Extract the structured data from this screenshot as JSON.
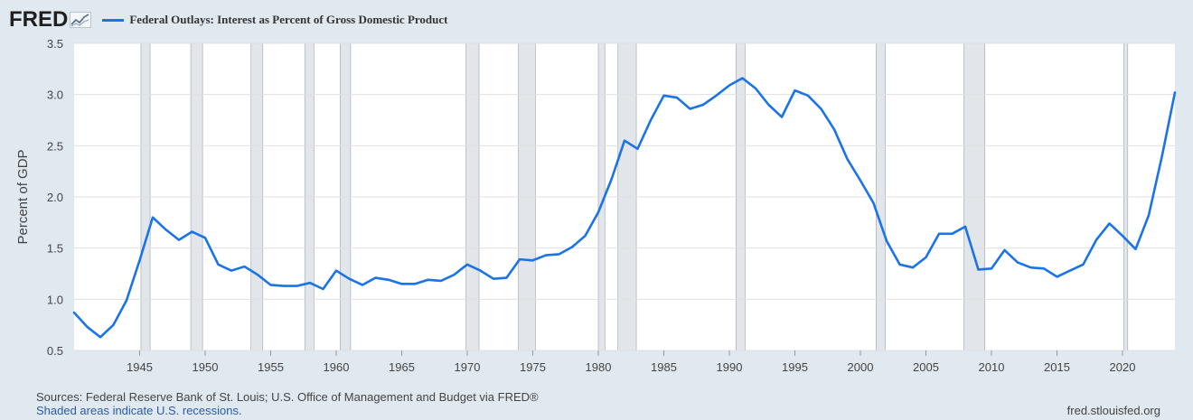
{
  "header": {
    "logo_text": "FRED",
    "legend_label": "Federal Outlays: Interest as Percent of Gross Domestic Product"
  },
  "footer": {
    "sources": "Sources: Federal Reserve Bank of St. Louis; U.S. Office of Management and Budget via FRED®",
    "note": "Shaded areas indicate U.S. recessions.",
    "site": "fred.stlouisfed.org"
  },
  "colors": {
    "line": "#1a73e8",
    "recession": "#e2e5ea",
    "plot_bg": "#ffffff",
    "grid": "#e0e0e0"
  },
  "chart_data": {
    "type": "line",
    "ylabel": "Percent of GDP",
    "xlim": [
      1940,
      2024
    ],
    "ylim": [
      0.5,
      3.5
    ],
    "yticks": [
      "0.5",
      "1.0",
      "1.5",
      "2.0",
      "2.5",
      "3.0",
      "3.5"
    ],
    "xticks": [
      "1945",
      "1950",
      "1955",
      "1960",
      "1965",
      "1970",
      "1975",
      "1980",
      "1985",
      "1990",
      "1995",
      "2000",
      "2005",
      "2010",
      "2015",
      "2020"
    ],
    "grid": true,
    "recessions": [
      [
        1945.1,
        1945.8
      ],
      [
        1948.9,
        1949.8
      ],
      [
        1953.5,
        1954.4
      ],
      [
        1957.6,
        1958.3
      ],
      [
        1960.3,
        1961.1
      ],
      [
        1969.9,
        1970.9
      ],
      [
        1973.9,
        1975.2
      ],
      [
        1980.0,
        1980.5
      ],
      [
        1981.5,
        1982.9
      ],
      [
        1990.5,
        1991.2
      ],
      [
        2001.2,
        2001.9
      ],
      [
        2007.9,
        2009.5
      ],
      [
        2020.1,
        2020.4
      ]
    ],
    "series": [
      {
        "x": [
          1940,
          1941,
          1942,
          1943,
          1944,
          1945,
          1946,
          1947,
          1948,
          1949,
          1950,
          1951,
          1952,
          1953,
          1954,
          1955,
          1956,
          1957,
          1958,
          1959,
          1960,
          1961,
          1962,
          1963,
          1964,
          1965,
          1966,
          1967,
          1968,
          1969,
          1970,
          1971,
          1972,
          1973,
          1974,
          1975,
          1976,
          1977,
          1978,
          1979,
          1980,
          1981,
          1982,
          1983,
          1984,
          1985,
          1986,
          1987,
          1988,
          1989,
          1990,
          1991,
          1992,
          1993,
          1994,
          1995,
          1996,
          1997,
          1998,
          1999,
          2000,
          2001,
          2002,
          2003,
          2004,
          2005,
          2006,
          2007,
          2008,
          2009,
          2010,
          2011,
          2012,
          2013,
          2014,
          2015,
          2016,
          2017,
          2018,
          2019,
          2020,
          2021,
          2022,
          2023,
          2024
        ],
        "values": [
          0.87,
          0.73,
          0.63,
          0.75,
          0.99,
          1.38,
          1.8,
          1.68,
          1.58,
          1.66,
          1.6,
          1.34,
          1.28,
          1.32,
          1.24,
          1.14,
          1.13,
          1.13,
          1.16,
          1.1,
          1.28,
          1.2,
          1.14,
          1.21,
          1.19,
          1.15,
          1.15,
          1.19,
          1.18,
          1.24,
          1.34,
          1.28,
          1.2,
          1.21,
          1.39,
          1.38,
          1.43,
          1.44,
          1.51,
          1.62,
          1.85,
          2.17,
          2.55,
          2.47,
          2.75,
          2.99,
          2.97,
          2.86,
          2.9,
          2.99,
          3.09,
          3.16,
          3.06,
          2.9,
          2.78,
          3.04,
          2.99,
          2.86,
          2.66,
          2.37,
          2.16,
          1.94,
          1.57,
          1.34,
          1.31,
          1.41,
          1.64,
          1.64,
          1.71,
          1.29,
          1.3,
          1.48,
          1.36,
          1.31,
          1.3,
          1.22,
          1.28,
          1.34,
          1.58,
          1.74,
          1.62,
          1.49,
          1.82,
          2.39,
          3.02
        ]
      }
    ]
  }
}
